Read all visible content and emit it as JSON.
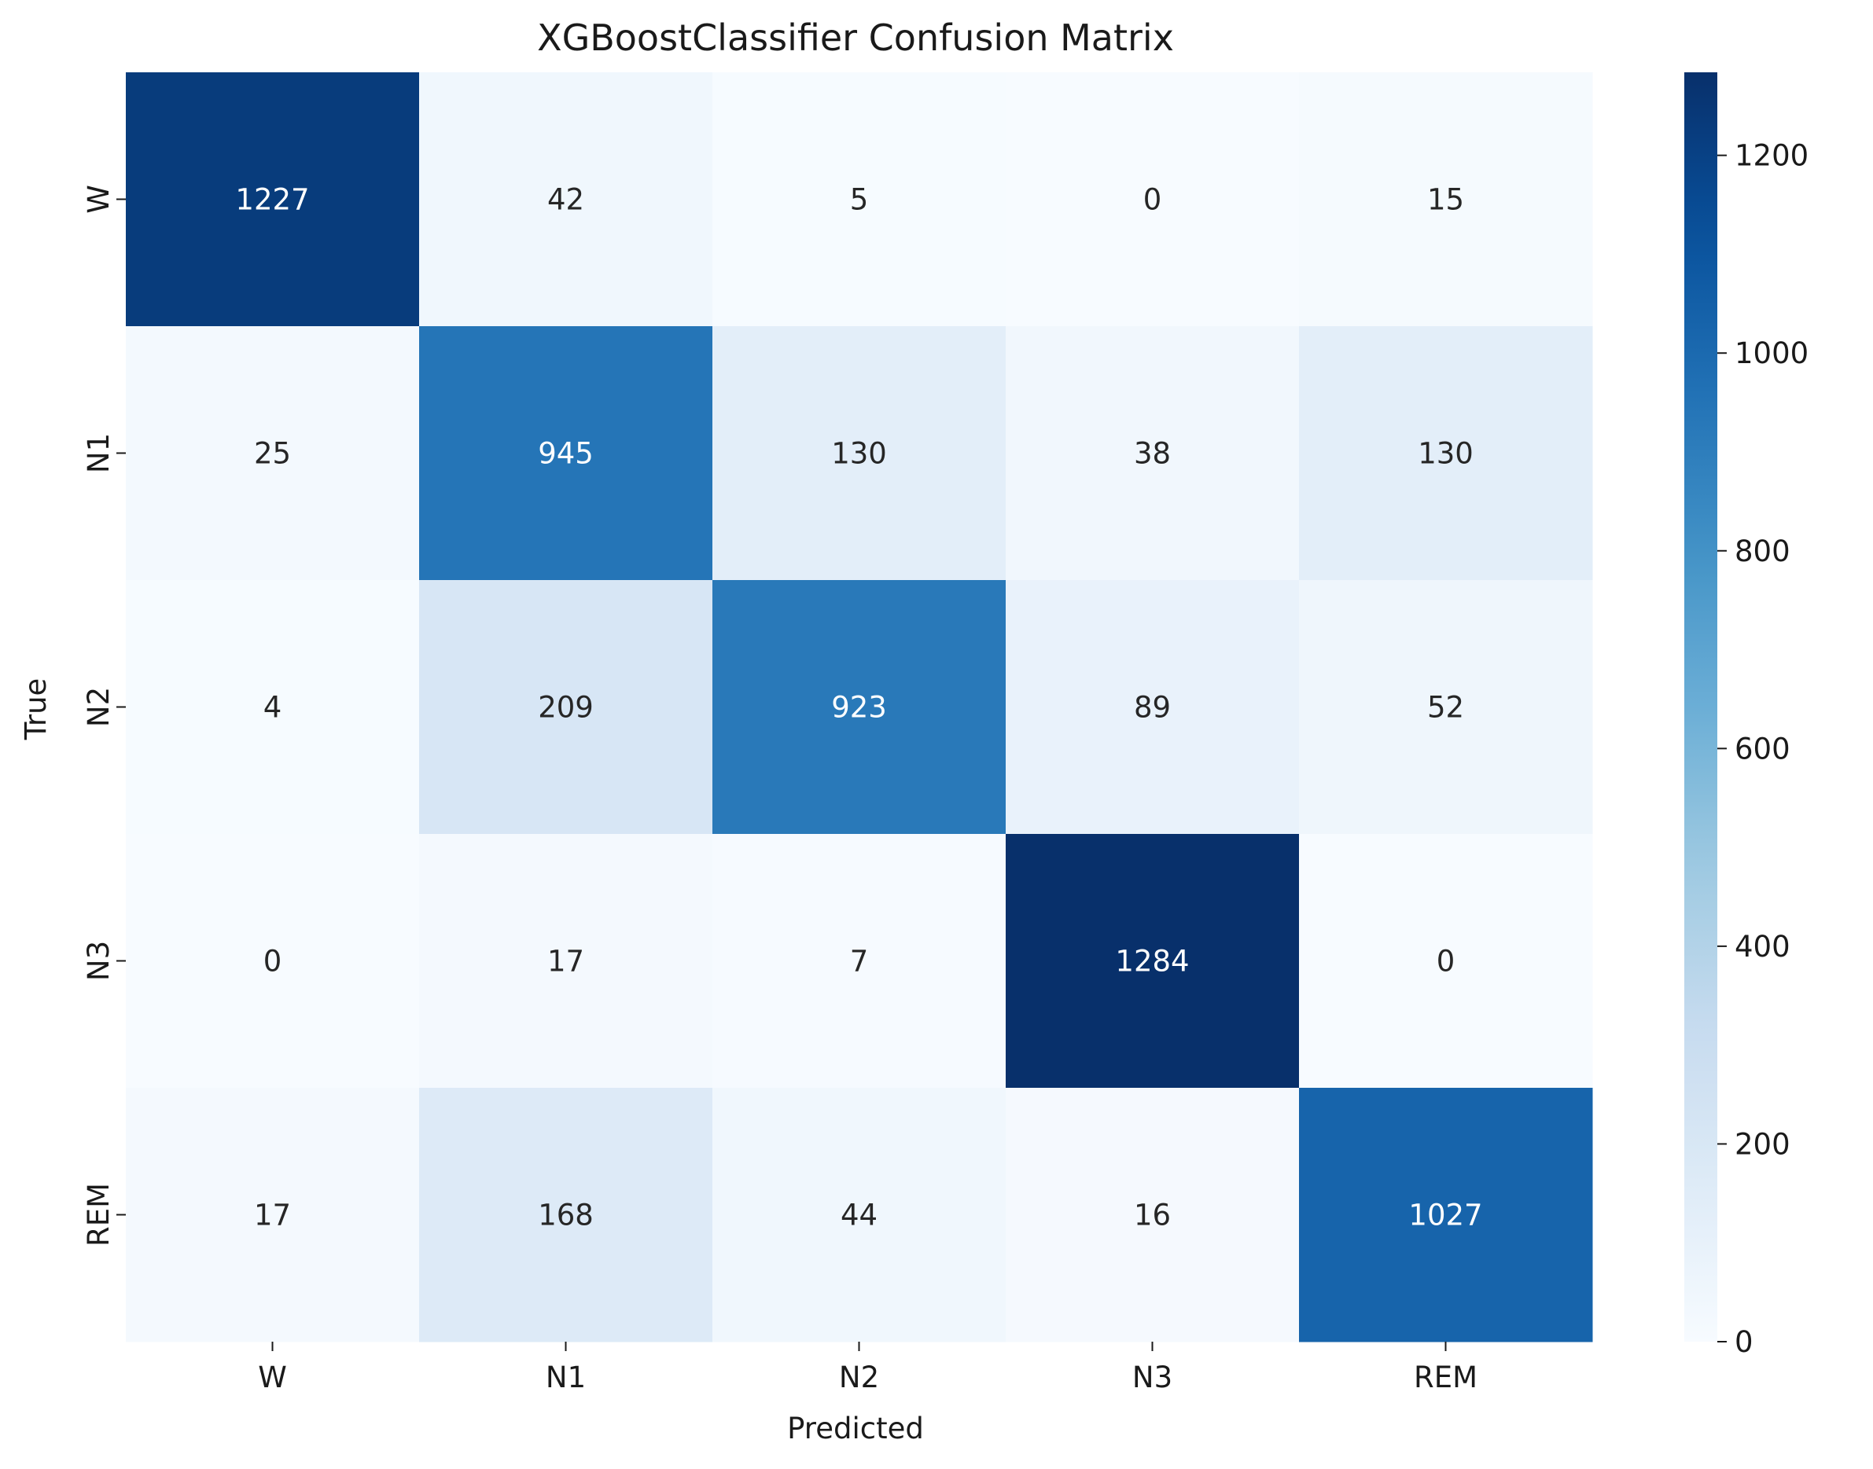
{
  "chart_data": {
    "type": "heatmap",
    "title": "XGBoostClassifier Confusion Matrix",
    "xlabel": "Predicted",
    "ylabel": "True",
    "x_categories": [
      "W",
      "N1",
      "N2",
      "N3",
      "REM"
    ],
    "y_categories": [
      "W",
      "N1",
      "N2",
      "N3",
      "REM"
    ],
    "values": [
      [
        1227,
        42,
        5,
        0,
        15
      ],
      [
        25,
        945,
        130,
        38,
        130
      ],
      [
        4,
        209,
        923,
        89,
        52
      ],
      [
        0,
        17,
        7,
        1284,
        0
      ],
      [
        17,
        168,
        44,
        16,
        1027
      ]
    ],
    "colormap": "Blues",
    "vmin": 0,
    "vmax": 1284,
    "colorbar_ticks": [
      0,
      200,
      400,
      600,
      800,
      1000,
      1200
    ],
    "annotation_colors": {
      "dark": "#262626",
      "light": "#ffffff"
    }
  }
}
